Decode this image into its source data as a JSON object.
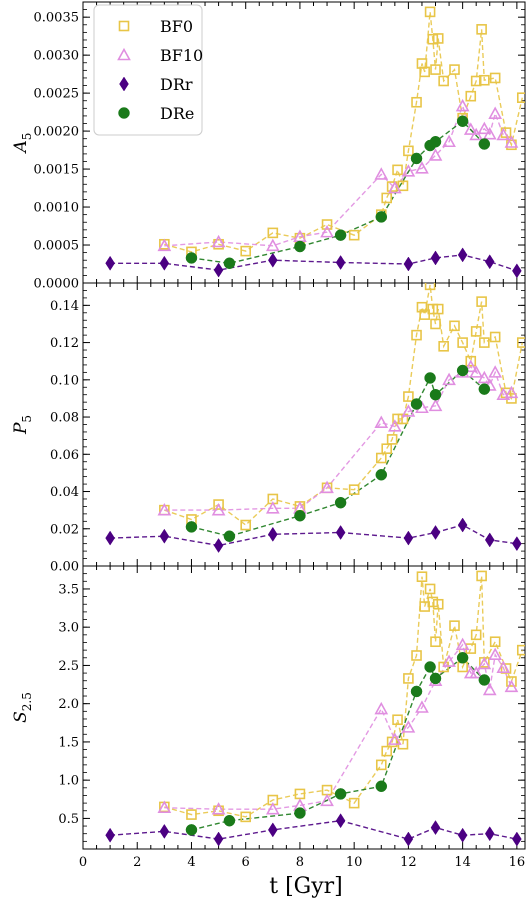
{
  "chart_data": {
    "type": "scatter",
    "x_title": "t [Gyr]",
    "x_range": [
      0,
      16.3
    ],
    "x_ticks": [
      "0",
      "2",
      "4",
      "6",
      "8",
      "10",
      "12",
      "14",
      "16"
    ],
    "legend": {
      "placement": "top-left",
      "entries": [
        "BF0",
        "BF10",
        "DRr",
        "DRe"
      ]
    },
    "colors": {
      "BF0": "#e8c547",
      "BF10": "#e08ee0",
      "DRr": "#4b0082",
      "DRe": "#1a7a1a",
      "frame": "#000000"
    },
    "panels": [
      {
        "ylabel": "A5",
        "ylabel_main": "A",
        "ylabel_sub": "5",
        "ylim": [
          0,
          0.0037
        ],
        "yticks": [
          0,
          0.0005,
          0.001,
          0.0015,
          0.002,
          0.0025,
          0.003,
          0.0035
        ],
        "ytick_labels": [
          "0.0000",
          "0.0005",
          "0.0010",
          "0.0015",
          "0.0020",
          "0.0025",
          "0.0030",
          "0.0035"
        ],
        "series": [
          {
            "name": "BF0",
            "x": [
              3,
              4,
              5,
              6,
              7,
              8,
              9,
              10,
              11,
              11.2,
              11.4,
              11.6,
              11.8,
              12,
              12.3,
              12.5,
              12.6,
              12.8,
              12.9,
              13,
              13.1,
              13.3,
              13.7,
              14,
              14.3,
              14.5,
              14.7,
              14.8,
              15.2,
              15.6,
              15.8,
              16.2
            ],
            "y": [
              0.00051,
              0.00041,
              0.00051,
              0.00042,
              0.00066,
              0.00059,
              0.00077,
              0.00063,
              0.0009,
              0.00112,
              0.00127,
              0.00149,
              0.00128,
              0.00174,
              0.00238,
              0.00289,
              0.00278,
              0.00357,
              0.00321,
              0.00281,
              0.00322,
              0.00266,
              0.00281,
              0.00217,
              0.00246,
              0.00266,
              0.00334,
              0.00267,
              0.0027,
              0.00198,
              0.00182,
              0.00244
            ]
          },
          {
            "name": "BF10",
            "x": [
              3,
              5,
              7,
              8,
              9,
              11,
              11.5,
              12,
              12.5,
              13,
              13.5,
              14,
              14.3,
              14.5,
              14.8,
              15,
              15.2,
              15.5,
              15.8
            ],
            "y": [
              0.00049,
              0.00054,
              0.00049,
              0.00061,
              0.00067,
              0.00143,
              0.00125,
              0.00147,
              0.00151,
              0.00168,
              0.00186,
              0.00233,
              0.00202,
              0.00195,
              0.00203,
              0.00196,
              0.00223,
              0.00195,
              0.00185
            ]
          },
          {
            "name": "DRr",
            "x": [
              1,
              3,
              5,
              7,
              9.5,
              12,
              13,
              14,
              15,
              16
            ],
            "y": [
              0.00026,
              0.00026,
              0.00017,
              0.0003,
              0.00027,
              0.00025,
              0.00033,
              0.00037,
              0.00028,
              0.00016
            ]
          },
          {
            "name": "DRe",
            "x": [
              4,
              5.4,
              8,
              9.5,
              11,
              12.3,
              12.8,
              13,
              14,
              14.8
            ],
            "y": [
              0.00033,
              0.00026,
              0.00048,
              0.00063,
              0.00087,
              0.00164,
              0.00181,
              0.00186,
              0.00213,
              0.00183
            ]
          }
        ]
      },
      {
        "ylabel": "P5",
        "ylabel_main": "P",
        "ylabel_sub": "5",
        "ylim": [
          0,
          0.152
        ],
        "yticks": [
          0,
          0.02,
          0.04,
          0.06,
          0.08,
          0.1,
          0.12,
          0.14
        ],
        "ytick_labels": [
          "0.00",
          "0.02",
          "0.04",
          "0.06",
          "0.08",
          "0.10",
          "0.12",
          "0.14"
        ],
        "series": [
          {
            "name": "BF0",
            "x": [
              3,
              4,
              5,
              6,
              7,
              8,
              9,
              10,
              11,
              11.2,
              11.4,
              11.6,
              11.8,
              12,
              12.3,
              12.5,
              12.6,
              12.8,
              12.9,
              13,
              13.1,
              13.3,
              13.7,
              14,
              14.3,
              14.5,
              14.7,
              14.8,
              15.2,
              15.6,
              15.8,
              16.2
            ],
            "y": [
              0.03,
              0.025,
              0.033,
              0.022,
              0.036,
              0.032,
              0.042,
              0.041,
              0.058,
              0.063,
              0.068,
              0.079,
              0.079,
              0.091,
              0.124,
              0.139,
              0.135,
              0.151,
              0.138,
              0.13,
              0.138,
              0.118,
              0.129,
              0.12,
              0.11,
              0.126,
              0.142,
              0.12,
              0.123,
              0.093,
              0.09,
              0.12
            ]
          },
          {
            "name": "BF10",
            "x": [
              3,
              5,
              7,
              8,
              9,
              11,
              11.5,
              12,
              12.5,
              13,
              13.5,
              14,
              14.3,
              14.5,
              14.8,
              15,
              15.2,
              15.5,
              15.8
            ],
            "y": [
              0.03,
              0.03,
              0.031,
              0.031,
              0.042,
              0.077,
              0.075,
              0.083,
              0.085,
              0.086,
              0.1,
              0.104,
              0.107,
              0.104,
              0.101,
              0.097,
              0.104,
              0.092,
              0.093
            ]
          },
          {
            "name": "DRr",
            "x": [
              1,
              3,
              5,
              7,
              9.5,
              12,
              13,
              14,
              15,
              16
            ],
            "y": [
              0.015,
              0.016,
              0.011,
              0.017,
              0.018,
              0.015,
              0.018,
              0.022,
              0.014,
              0.012
            ]
          },
          {
            "name": "DRe",
            "x": [
              4,
              5.4,
              8,
              9.5,
              11,
              12.3,
              12.8,
              13,
              14,
              14.8
            ],
            "y": [
              0.021,
              0.016,
              0.027,
              0.034,
              0.049,
              0.087,
              0.101,
              0.092,
              0.105,
              0.095
            ]
          }
        ]
      },
      {
        "ylabel": "S2.5",
        "ylabel_main": "S",
        "ylabel_sub": "2.5",
        "ylim": [
          0.1,
          3.8
        ],
        "yticks": [
          0.5,
          1.0,
          1.5,
          2.0,
          2.5,
          3.0,
          3.5
        ],
        "ytick_labels": [
          "0.5",
          "1.0",
          "1.5",
          "2.0",
          "2.5",
          "3.0",
          "3.5"
        ],
        "series": [
          {
            "name": "BF0",
            "x": [
              3,
              4,
              5,
              6,
              7,
              8,
              9,
              10,
              11,
              11.2,
              11.4,
              11.6,
              11.8,
              12,
              12.3,
              12.5,
              12.6,
              12.8,
              12.9,
              13,
              13.1,
              13.3,
              13.7,
              14,
              14.3,
              14.5,
              14.7,
              14.8,
              15.2,
              15.6,
              15.8,
              16.2
            ],
            "y": [
              0.65,
              0.55,
              0.6,
              0.52,
              0.74,
              0.82,
              0.87,
              0.7,
              1.2,
              1.38,
              1.5,
              1.79,
              1.47,
              2.33,
              2.63,
              3.66,
              3.27,
              3.5,
              3.33,
              2.81,
              3.3,
              2.48,
              3.02,
              2.48,
              2.72,
              2.9,
              3.67,
              2.54,
              2.81,
              2.46,
              2.29,
              2.7
            ]
          },
          {
            "name": "BF10",
            "x": [
              3,
              5,
              7,
              8,
              9,
              11,
              11.5,
              12,
              12.5,
              13,
              13.5,
              14,
              14.3,
              14.5,
              14.8,
              15,
              15.2,
              15.5,
              15.8
            ],
            "y": [
              0.64,
              0.62,
              0.62,
              0.67,
              0.73,
              1.93,
              1.53,
              1.69,
              1.95,
              2.3,
              2.55,
              2.77,
              2.4,
              2.4,
              2.52,
              2.18,
              2.64,
              2.47,
              2.22
            ]
          },
          {
            "name": "DRr",
            "x": [
              1,
              3,
              5,
              7,
              9.5,
              12,
              13,
              14,
              15,
              16
            ],
            "y": [
              0.28,
              0.33,
              0.23,
              0.35,
              0.47,
              0.23,
              0.38,
              0.28,
              0.3,
              0.23
            ]
          },
          {
            "name": "DRe",
            "x": [
              4,
              5.4,
              8,
              9.5,
              11,
              12.3,
              12.8,
              13,
              14,
              14.8
            ],
            "y": [
              0.35,
              0.47,
              0.57,
              0.82,
              0.92,
              2.16,
              2.48,
              2.33,
              2.6,
              2.31
            ]
          }
        ]
      }
    ]
  }
}
